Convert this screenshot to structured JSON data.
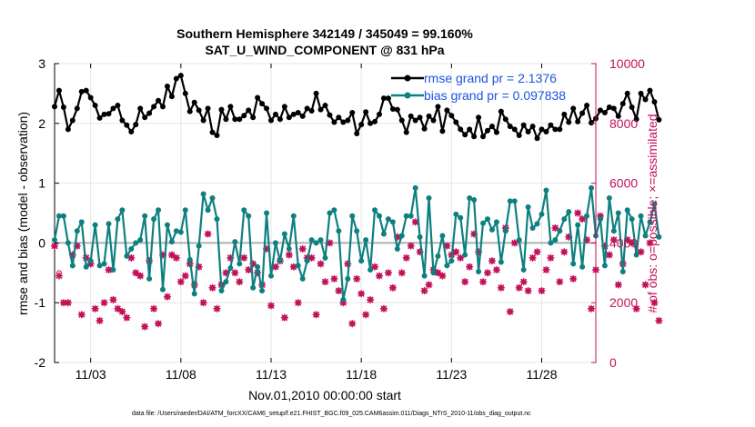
{
  "chart_data": {
    "type": "line",
    "title_line1": "Southern Hemisphere 342149 / 345049 = 99.160%",
    "title_line2": "SAT_U_WIND_COMPONENT @ 831 hPa",
    "xlabel": "Nov.01,2010 00:00:00 start",
    "ylabel": "rmse and bias (model - observation)",
    "ylabel_right": "# of obs: o=possible; ×=assimilated",
    "footnote": "data file: /Users/raeder/DAI/ATM_forcXX/CAM6_setup/f.e21.FHIST_BGC.f09_025.CAM6assim.011/Diags_NTrS_2010-11/obs_diag_output.nc",
    "ylim": [
      -2,
      3
    ],
    "ylim_right": [
      0,
      10000
    ],
    "xlim": [
      1.0,
      31.0
    ],
    "x_ticks": [
      3,
      8,
      13,
      18,
      23,
      28
    ],
    "x_tick_labels": [
      "11/03",
      "11/08",
      "11/13",
      "11/18",
      "11/23",
      "11/28"
    ],
    "y_ticks": [
      -2,
      -1,
      0,
      1,
      2,
      3
    ],
    "y_tick_labels": [
      "-2",
      "-1",
      "0",
      "1",
      "2",
      "3"
    ],
    "y_right_ticks": [
      0,
      2000,
      4000,
      6000,
      8000,
      10000
    ],
    "y_right_tick_labels": [
      "0",
      "2000",
      "4000",
      "6000",
      "8000",
      "10000"
    ],
    "legend": [
      {
        "label": "rmse grand pr = 2.1376",
        "color": "#000000"
      },
      {
        "label": "bias grand pr = 0.097838",
        "color": "#0e8080"
      }
    ],
    "series": [
      {
        "name": "rmse",
        "color": "#000000",
        "x_start": 1.0,
        "x_step": 0.25,
        "values": [
          2.28,
          2.55,
          2.27,
          1.9,
          2.05,
          2.25,
          2.53,
          2.55,
          2.43,
          2.3,
          2.09,
          2.15,
          2.16,
          2.25,
          2.3,
          2.05,
          1.97,
          1.86,
          1.98,
          2.25,
          2.1,
          2.17,
          2.28,
          2.38,
          2.28,
          2.62,
          2.45,
          2.75,
          2.8,
          2.5,
          2.2,
          2.35,
          2.22,
          2.05,
          2.25,
          1.85,
          1.8,
          2.23,
          2.07,
          2.28,
          2.07,
          2.07,
          2.13,
          2.22,
          2.1,
          2.43,
          2.33,
          2.25,
          2.05,
          2.15,
          2.07,
          2.28,
          2.1,
          2.15,
          2.18,
          2.12,
          2.25,
          2.21,
          2.5,
          2.23,
          2.3,
          2.14,
          2.02,
          2.1,
          2.02,
          2.05,
          2.18,
          1.83,
          1.98,
          2.19,
          2.0,
          2.03,
          2.15,
          2.42,
          2.42,
          2.24,
          2.23,
          2.05,
          1.85,
          2.12,
          2.05,
          2.1,
          1.91,
          2.12,
          2.05,
          2.28,
          1.87,
          2.22,
          2.13,
          2.02,
          1.9,
          1.81,
          1.9,
          1.78,
          2.1,
          1.78,
          1.88,
          1.95,
          1.85,
          2.2,
          2.07,
          1.95,
          1.9,
          1.8,
          1.97,
          1.86,
          1.95,
          1.75,
          1.9,
          1.86,
          1.97,
          1.9,
          1.9,
          2.15,
          2.02,
          2.25,
          2.03,
          2.17,
          2.3,
          2.01,
          2.08,
          2.22,
          2.18,
          2.27,
          2.25,
          2.12,
          2.33,
          2.5,
          2.27,
          2.07,
          2.5,
          2.4,
          2.55,
          2.36,
          2.06
        ]
      },
      {
        "name": "bias",
        "color": "#0e8080",
        "x_start": 1.0,
        "x_step": 0.25,
        "values": [
          0.05,
          0.45,
          0.45,
          0.0,
          -0.38,
          0.2,
          0.35,
          -0.4,
          -0.3,
          0.3,
          -0.38,
          -0.35,
          0.32,
          -0.45,
          0.4,
          0.55,
          -0.22,
          -0.1,
          0.0,
          0.05,
          0.45,
          -0.6,
          0.4,
          0.55,
          -0.78,
          0.3,
          0.02,
          0.2,
          0.18,
          0.55,
          -0.28,
          -0.85,
          -0.05,
          0.82,
          0.55,
          0.75,
          0.4,
          -0.8,
          -0.65,
          -0.42,
          0.02,
          -0.35,
          0.55,
          0.45,
          -0.75,
          -0.4,
          -0.8,
          0.5,
          -0.55,
          0.0,
          -0.3,
          0.15,
          -0.1,
          0.45,
          -0.38,
          -0.6,
          -0.3,
          0.05,
          0.0,
          0.05,
          -0.25,
          0.5,
          0.55,
          0.2,
          -0.95,
          -0.6,
          0.45,
          0.2,
          -0.3,
          0.05,
          -0.45,
          0.55,
          0.45,
          0.15,
          0.4,
          0.35,
          -0.1,
          0.12,
          0.45,
          0.45,
          0.92,
          0.1,
          -0.55,
          0.75,
          -0.5,
          -0.22,
          0.12,
          -0.38,
          -0.3,
          0.48,
          0.42,
          -0.2,
          0.75,
          0.72,
          -0.48,
          0.33,
          0.4,
          0.22,
          0.35,
          -0.32,
          0.2,
          0.7,
          0.7,
          0.05,
          -0.45,
          0.6,
          0.25,
          0.32,
          0.48,
          0.88,
          0.0,
          0.05,
          0.2,
          0.4,
          0.52,
          -0.35,
          0.3,
          -0.4,
          0.45,
          0.92,
          0.12,
          0.4,
          -0.38,
          0.75,
          0.2,
          0.5,
          -0.48,
          0.55,
          0.4,
          -0.2,
          0.45,
          0.12,
          0.35,
          0.65,
          0.1
        ]
      },
      {
        "name": "# of obs possible",
        "color": "#c3115a",
        "marker": "o",
        "x_start": 1.0,
        "x_step": 0.25,
        "values": [
          3900,
          3000,
          2000,
          2000,
          3600,
          3900,
          1600,
          3500,
          3300,
          1800,
          1400,
          2000,
          3100,
          2100,
          1800,
          1700,
          1500,
          3500,
          3000,
          2900,
          1200,
          3400,
          1800,
          1300,
          3600,
          2200,
          3600,
          3500,
          2700,
          2900,
          3300,
          2600,
          3200,
          2000,
          4300,
          2500,
          1800,
          2600,
          3000,
          3500,
          3000,
          2700,
          3500,
          3100,
          3300,
          3000,
          2600,
          3800,
          1900,
          3200,
          3400,
          1500,
          3600,
          3200,
          2000,
          3800,
          3500,
          3500,
          1600,
          3300,
          2700,
          4000,
          2800,
          2400,
          2000,
          3300,
          1300,
          2800,
          2300,
          1600,
          2100,
          3200,
          2900,
          1800,
          3000,
          2500,
          4200,
          3000,
          3500,
          3900,
          4700,
          3700,
          2400,
          2600,
          3100,
          3000,
          2900,
          3900,
          3600,
          3700,
          3500,
          2700,
          3200,
          4300,
          3700,
          2700,
          3000,
          3400,
          3100,
          2500,
          4500,
          1700,
          4000,
          2500,
          2700,
          2400,
          3500,
          3700,
          2400,
          3100,
          3500,
          4500,
          2700,
          3700,
          4200,
          2800,
          5000,
          4800,
          4100,
          1800,
          3100,
          4900,
          3900,
          3600,
          4100,
          2600,
          3300,
          4100,
          4000,
          1800,
          3700,
          2600,
          4000,
          2000,
          1400
        ]
      },
      {
        "name": "# of obs assimilated",
        "color": "#c3115a",
        "marker": "x",
        "x_start": 1.0,
        "x_step": 0.25,
        "values": [
          3900,
          2900,
          2000,
          2000,
          3600,
          3900,
          1600,
          3500,
          3300,
          1800,
          1400,
          2000,
          3100,
          2100,
          1800,
          1700,
          1500,
          3500,
          3000,
          2900,
          1200,
          3400,
          1800,
          1300,
          3600,
          2200,
          3600,
          3500,
          2700,
          2900,
          3300,
          2600,
          3200,
          2000,
          4300,
          2500,
          1800,
          2600,
          3000,
          3500,
          3000,
          2700,
          3500,
          3100,
          3300,
          3000,
          2600,
          3800,
          1900,
          3200,
          3400,
          1500,
          3600,
          3200,
          2000,
          3800,
          3500,
          3500,
          1600,
          3300,
          2700,
          4000,
          2800,
          2400,
          2000,
          3300,
          1300,
          2800,
          2300,
          1600,
          2100,
          3200,
          2900,
          1800,
          3000,
          2500,
          4200,
          3000,
          3500,
          3900,
          4700,
          3700,
          2400,
          2600,
          3100,
          3000,
          2900,
          3900,
          3600,
          3700,
          3500,
          2700,
          3200,
          4300,
          3700,
          2700,
          3000,
          3400,
          3100,
          2500,
          4500,
          1700,
          4000,
          2500,
          2700,
          2400,
          3500,
          3700,
          2400,
          3100,
          3500,
          4500,
          2700,
          3700,
          4200,
          2800,
          5000,
          4800,
          4100,
          1800,
          3100,
          4900,
          3900,
          3600,
          4100,
          2600,
          3300,
          4100,
          4000,
          1800,
          3700,
          2600,
          4000,
          2000,
          1400
        ]
      }
    ]
  }
}
